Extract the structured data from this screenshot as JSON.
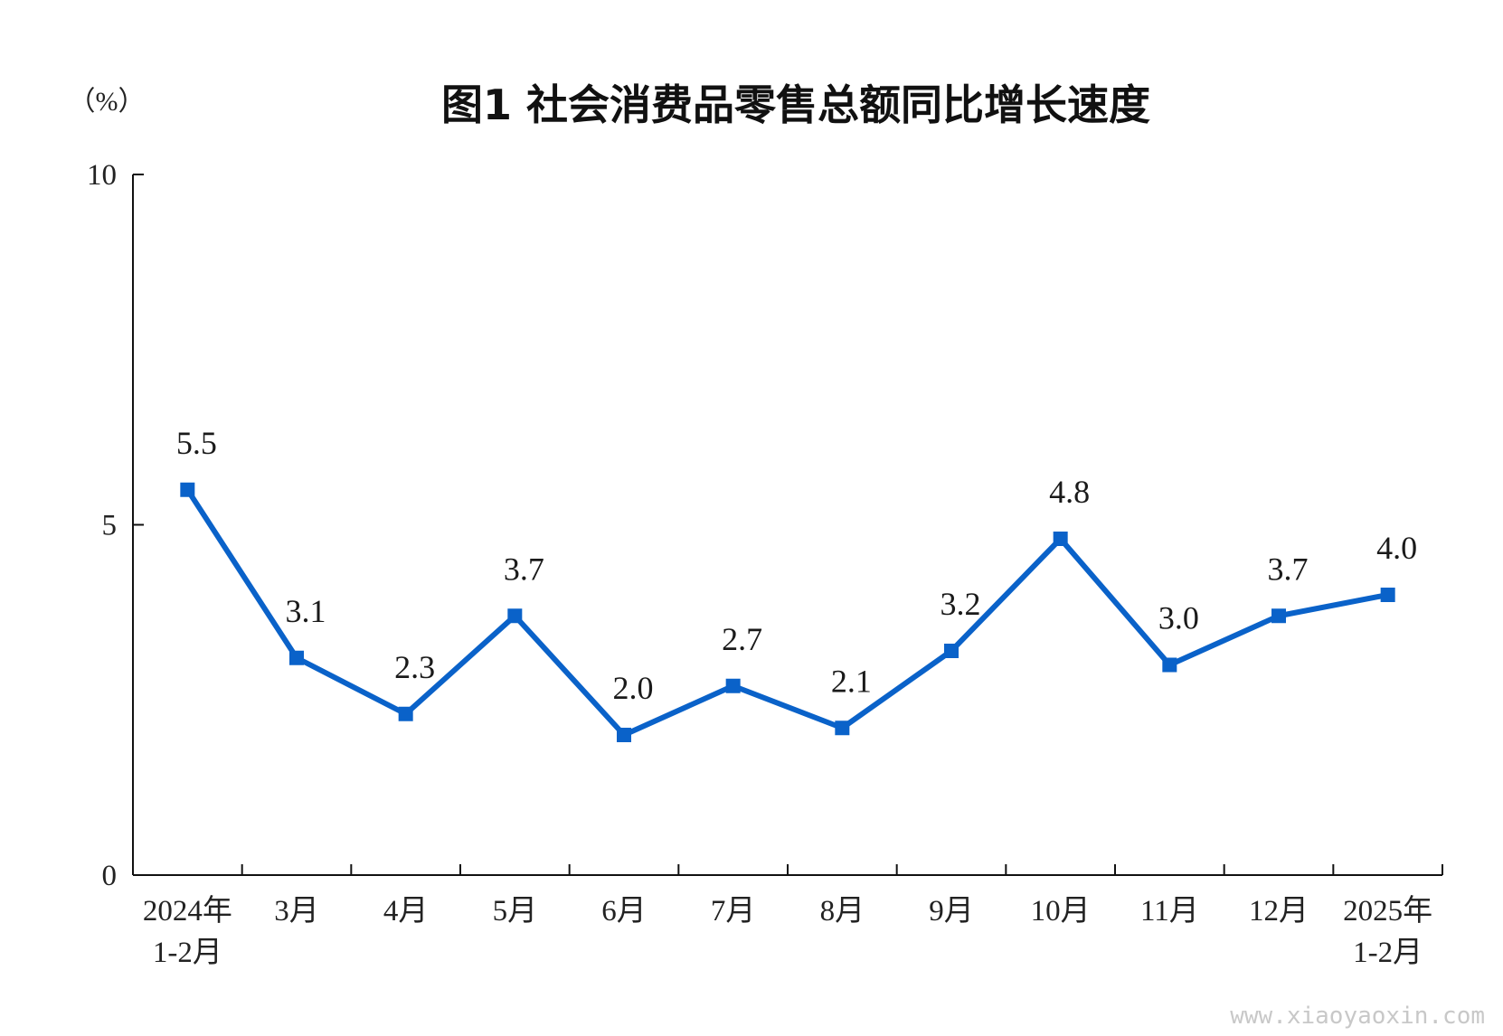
{
  "chart_data": {
    "type": "line",
    "title": "图1  社会消费品零售总额同比增长速度",
    "unit_label": "（%）",
    "xlabel": "",
    "ylabel": "",
    "ylim": [
      0,
      10
    ],
    "yticks": [
      {
        "value": 0,
        "label": "0"
      },
      {
        "value": 5,
        "label": "5"
      },
      {
        "value": 10,
        "label": "10"
      }
    ],
    "grid": false,
    "legend": "none",
    "categories": [
      [
        "2024年",
        "1-2月"
      ],
      [
        "3月"
      ],
      [
        "4月"
      ],
      [
        "5月"
      ],
      [
        "6月"
      ],
      [
        "7月"
      ],
      [
        "8月"
      ],
      [
        "9月"
      ],
      [
        "10月"
      ],
      [
        "11月"
      ],
      [
        "12月"
      ],
      [
        "2025年",
        "1-2月"
      ]
    ],
    "series": [
      {
        "color": "#0a62c9",
        "marker": "square",
        "values": [
          5.5,
          3.1,
          2.3,
          3.7,
          2.0,
          2.7,
          2.1,
          3.2,
          4.8,
          3.0,
          3.7,
          4.0
        ],
        "data_labels": [
          "5.5",
          "3.1",
          "2.3",
          "3.7",
          "2.0",
          "2.7",
          "2.1",
          "3.2",
          "4.8",
          "3.0",
          "3.7",
          "4.0"
        ]
      }
    ],
    "axis_color": "#111111"
  },
  "watermark": "www.xiaoyaoxin.com"
}
